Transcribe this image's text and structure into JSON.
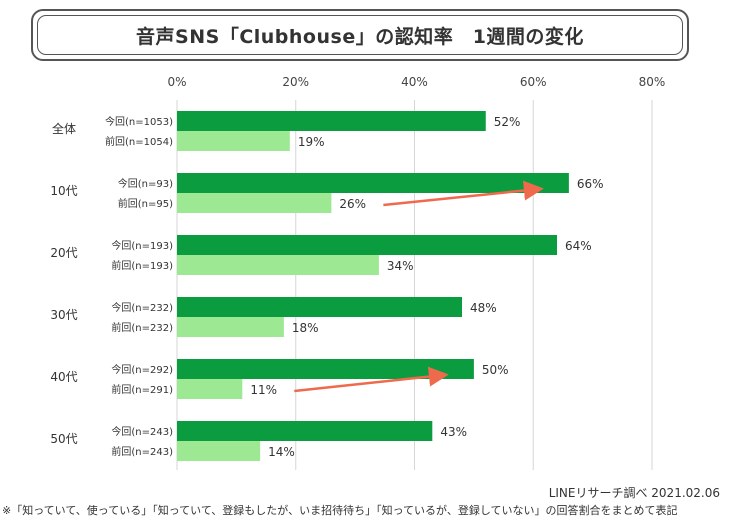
{
  "title": "音声SNS「Clubhouse」の認知率　1週間の変化",
  "source": "LINEリサーチ調べ 2021.02.06",
  "note": "※「知っていて、使っている」「知っていて、登録もしたが、いま招待待ち」「知っているが、登録していない」の回答割合をまとめて表記",
  "colors": {
    "current": "#0a9c3e",
    "previous": "#9ce893",
    "arrow": "#ef6a4d",
    "grid": "#d6d6d6"
  },
  "chart_data": {
    "type": "bar",
    "orientation": "horizontal",
    "xlim": [
      0,
      80
    ],
    "ticks": [
      "0%",
      "20%",
      "40%",
      "60%",
      "80%"
    ],
    "tick_values": [
      0,
      20,
      40,
      60,
      80
    ],
    "grid": true,
    "groups": [
      {
        "label": "全体",
        "bars": [
          {
            "label": "今回(n=1053)",
            "value": 52,
            "value_label": "52%",
            "series": "current"
          },
          {
            "label": "前回(n=1054)",
            "value": 19,
            "value_label": "19%",
            "series": "previous"
          }
        ]
      },
      {
        "label": "10代",
        "bars": [
          {
            "label": "今回(n=93)",
            "value": 66,
            "value_label": "66%",
            "series": "current"
          },
          {
            "label": "前回(n=95)",
            "value": 26,
            "value_label": "26%",
            "series": "previous"
          }
        ]
      },
      {
        "label": "20代",
        "bars": [
          {
            "label": "今回(n=193)",
            "value": 64,
            "value_label": "64%",
            "series": "current"
          },
          {
            "label": "前回(n=193)",
            "value": 34,
            "value_label": "34%",
            "series": "previous"
          }
        ]
      },
      {
        "label": "30代",
        "bars": [
          {
            "label": "今回(n=232)",
            "value": 48,
            "value_label": "48%",
            "series": "current"
          },
          {
            "label": "前回(n=232)",
            "value": 18,
            "value_label": "18%",
            "series": "previous"
          }
        ]
      },
      {
        "label": "40代",
        "bars": [
          {
            "label": "今回(n=292)",
            "value": 50,
            "value_label": "50%",
            "series": "current"
          },
          {
            "label": "前回(n=291)",
            "value": 11,
            "value_label": "11%",
            "series": "previous"
          }
        ]
      },
      {
        "label": "50代",
        "bars": [
          {
            "label": "今回(n=243)",
            "value": 43,
            "value_label": "43%",
            "series": "current"
          },
          {
            "label": "前回(n=243)",
            "value": 14,
            "value_label": "14%",
            "series": "previous"
          }
        ]
      }
    ],
    "highlight_arrows": [
      "10代",
      "40代"
    ]
  }
}
